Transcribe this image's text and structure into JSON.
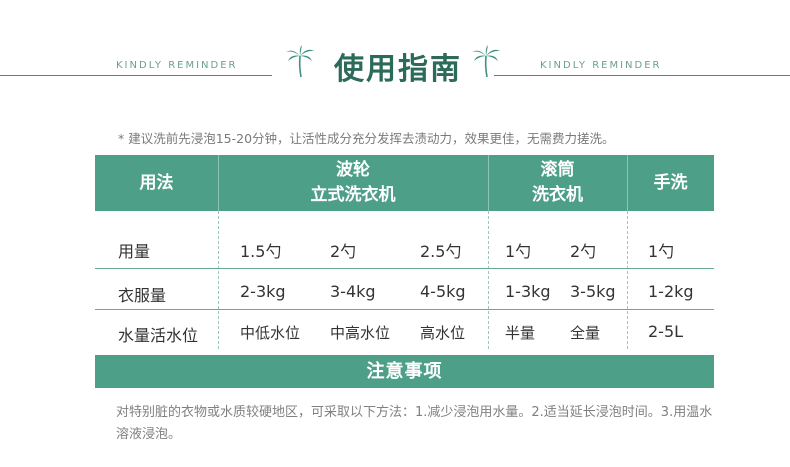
{
  "header": {
    "title": "使用指南",
    "left_tag": "KINDLY REMINDER",
    "right_tag": "KINDLY REMINDER"
  },
  "note": "* 建议洗前先浸泡15-20分钟，让活性成分充分发挥去渍动力，效果更佳，无需费力搓洗。",
  "table": {
    "col_usage": "用法",
    "col_pulsator_1": "波轮",
    "col_pulsator_2": "立式洗衣机",
    "col_drum_1": "滚筒",
    "col_drum_2": "洗衣机",
    "col_hand": "手洗",
    "rows": [
      {
        "label": "用量",
        "p1": "1.5勺",
        "p2": "2勺",
        "p3": "2.5勺",
        "d1": "1勺",
        "d2": "2勺",
        "h": "1勺"
      },
      {
        "label": "衣服量",
        "p1": "2-3kg",
        "p2": "3-4kg",
        "p3": "4-5kg",
        "d1": "1-3kg",
        "d2": "3-5kg",
        "h": "1-2kg"
      },
      {
        "label": "水量活水位",
        "p1": "中低水位",
        "p2": "中高水位",
        "p3": "高水位",
        "d1": "半量",
        "d2": "全量",
        "h": "2-5L"
      }
    ]
  },
  "caution": {
    "title": "注意事项",
    "text": "对特别脏的衣物或水质较硬地区，可采取以下方法：1.减少浸泡用水量。2.适当延长浸泡时间。3.用温水溶液浸泡。"
  },
  "colors": {
    "accent": "#4e9f88",
    "title": "#2c6a5a",
    "line": "#3f9080"
  }
}
